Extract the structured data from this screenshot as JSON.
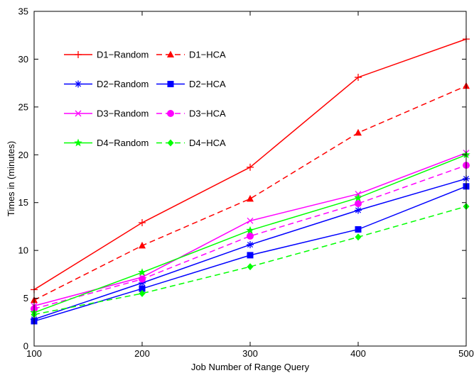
{
  "chart_data": {
    "type": "line",
    "title": "",
    "xlabel": "Job Number of Range Query",
    "ylabel": "Times in (minutes)",
    "xlim": [
      100,
      500
    ],
    "ylim": [
      0,
      35
    ],
    "x_ticks": [
      100,
      200,
      300,
      400,
      500
    ],
    "y_ticks": [
      0,
      5,
      10,
      15,
      20,
      25,
      30,
      35
    ],
    "grid": false,
    "legend_position": "top-left",
    "x": [
      100,
      200,
      300,
      400,
      500
    ],
    "series": [
      {
        "name": "D1−Random",
        "values": [
          5.9,
          12.9,
          18.7,
          28.1,
          32.1
        ],
        "color": "#ff0000",
        "dash": "solid",
        "marker": "plus"
      },
      {
        "name": "D1−HCA",
        "values": [
          4.8,
          10.5,
          15.4,
          22.3,
          27.2
        ],
        "color": "#ff0000",
        "dash": "dashed",
        "marker": "triangle"
      },
      {
        "name": "D2−Random",
        "values": [
          2.8,
          6.6,
          10.6,
          14.2,
          17.5
        ],
        "color": "#0000ff",
        "dash": "solid",
        "marker": "asterisk"
      },
      {
        "name": "D2−HCA",
        "values": [
          2.6,
          6.0,
          9.5,
          12.2,
          16.7
        ],
        "color": "#0000ff",
        "dash": "solid",
        "marker": "square"
      },
      {
        "name": "D3−Random",
        "values": [
          4.2,
          7.2,
          13.1,
          15.9,
          20.2
        ],
        "color": "#ff00ff",
        "dash": "solid",
        "marker": "x"
      },
      {
        "name": "D3−HCA",
        "values": [
          3.9,
          7.0,
          11.5,
          14.9,
          18.9
        ],
        "color": "#ff00ff",
        "dash": "dashed",
        "marker": "circle"
      },
      {
        "name": "D4−Random",
        "values": [
          3.5,
          7.7,
          12.1,
          15.5,
          20.0
        ],
        "color": "#00ff00",
        "dash": "solid",
        "marker": "star"
      },
      {
        "name": "D4−HCA",
        "values": [
          3.3,
          5.5,
          8.3,
          11.4,
          14.6
        ],
        "color": "#00ff00",
        "dash": "dashed",
        "marker": "diamond"
      }
    ]
  }
}
